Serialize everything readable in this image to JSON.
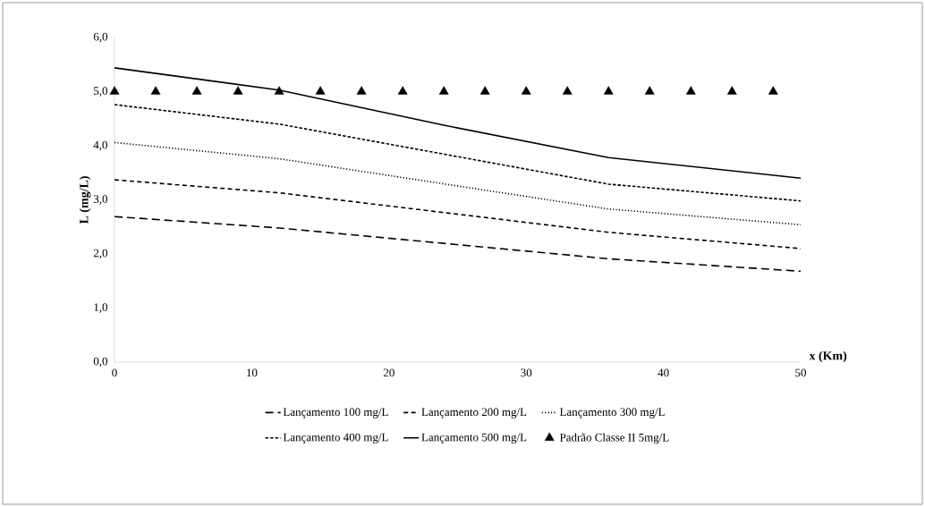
{
  "chart_data": {
    "type": "line",
    "xlabel": "x (Km)",
    "ylabel": "L (mg/L)",
    "xlim": [
      0,
      50
    ],
    "xticks": [
      0,
      10,
      20,
      30,
      40,
      50
    ],
    "ylim": [
      0,
      6
    ],
    "yticks": [
      {
        "value": 0,
        "label": "0,0"
      },
      {
        "value": 1,
        "label": "1,0"
      },
      {
        "value": 2,
        "label": "2,0"
      },
      {
        "value": 3,
        "label": "3,0"
      },
      {
        "value": 4,
        "label": "4,0"
      },
      {
        "value": 5,
        "label": "5,0"
      },
      {
        "value": 6,
        "label": "6,0"
      }
    ],
    "grid": false,
    "legend": "bottom",
    "marker": "none",
    "series": [
      {
        "name": "Lançamento 100 mg/L",
        "color": "#000000",
        "line_style": "dashed",
        "x": [
          0,
          12,
          36,
          50
        ],
        "values": [
          2.69,
          2.48,
          1.91,
          1.68
        ]
      },
      {
        "name": "Lançamento 200 mg/L",
        "color": "#000000",
        "line_style": "dashed",
        "x": [
          0,
          12,
          36,
          50
        ],
        "values": [
          3.37,
          3.13,
          2.4,
          2.1
        ]
      },
      {
        "name": "Lançamento 300 mg/L",
        "color": "#000000",
        "line_style": "dotted",
        "x": [
          0,
          12,
          36,
          50
        ],
        "values": [
          4.06,
          3.76,
          2.83,
          2.54
        ]
      },
      {
        "name": "Lançamento 400 mg/L",
        "color": "#000000",
        "line_style": "dashed",
        "x": [
          0,
          12,
          36,
          50
        ],
        "values": [
          4.76,
          4.4,
          3.29,
          2.98
        ]
      },
      {
        "name": "Lançamento 500 mg/L",
        "color": "#000000",
        "line_style": "solid",
        "x": [
          0,
          12,
          24,
          36,
          50
        ],
        "values": [
          5.44,
          5.03,
          4.38,
          3.78,
          3.4
        ]
      },
      {
        "name": "Padrão Classe II 5mg/L",
        "type": "scatter",
        "marker": "triangle",
        "color": "#000000",
        "x": [
          0,
          3,
          6,
          9,
          12,
          15,
          18,
          21,
          24,
          27,
          30,
          33,
          36,
          39,
          42,
          45,
          48
        ],
        "values": [
          5,
          5,
          5,
          5,
          5,
          5,
          5,
          5,
          5,
          5,
          5,
          5,
          5,
          5,
          5,
          5,
          5
        ]
      }
    ]
  }
}
